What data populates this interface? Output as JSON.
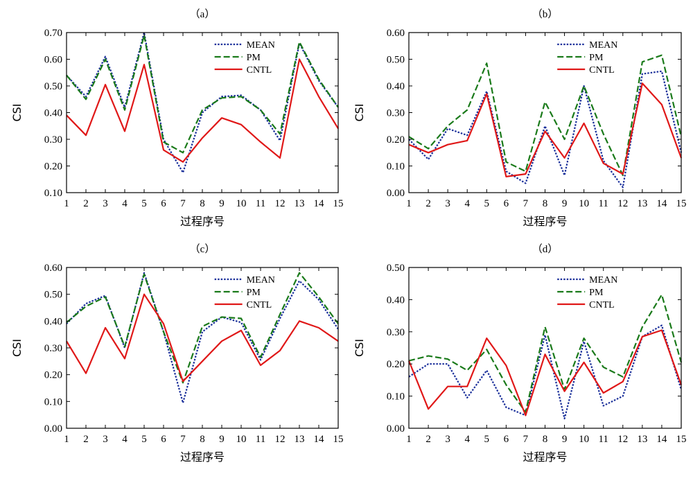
{
  "styles": {
    "MEAN": {
      "color": "#1a2f9a",
      "dash": "2.5,2",
      "width": 2.2
    },
    "PM": {
      "color": "#1a7a1a",
      "dash": "9,4",
      "width": 2.2
    },
    "CNTL": {
      "color": "#e01818",
      "dash": "",
      "width": 2.2
    }
  },
  "chart_data": [
    {
      "type": "line",
      "title": "（a）",
      "xlabel": "过程序号",
      "ylabel": "CSI",
      "x": [
        1,
        2,
        3,
        4,
        5,
        6,
        7,
        8,
        9,
        10,
        11,
        12,
        13,
        14,
        15
      ],
      "ylim": [
        0.1,
        0.7
      ],
      "yticks": [
        0.1,
        0.2,
        0.3,
        0.4,
        0.5,
        0.6,
        0.7
      ],
      "legend": "top-right",
      "grid": false,
      "series": [
        {
          "name": "MEAN",
          "values": [
            0.54,
            0.46,
            0.61,
            0.42,
            0.7,
            0.3,
            0.175,
            0.4,
            0.46,
            0.465,
            0.41,
            0.295,
            0.66,
            0.52,
            0.42
          ]
        },
        {
          "name": "PM",
          "values": [
            0.54,
            0.45,
            0.6,
            0.41,
            0.69,
            0.29,
            0.25,
            0.41,
            0.455,
            0.46,
            0.41,
            0.32,
            0.665,
            0.525,
            0.42
          ]
        },
        {
          "name": "CNTL",
          "values": [
            0.39,
            0.315,
            0.505,
            0.33,
            0.58,
            0.26,
            0.215,
            0.305,
            0.38,
            0.355,
            0.29,
            0.23,
            0.6,
            0.46,
            0.34
          ]
        }
      ]
    },
    {
      "type": "line",
      "title": "（b）",
      "xlabel": "过程序号",
      "ylabel": "CSI",
      "x": [
        1,
        2,
        3,
        4,
        5,
        6,
        7,
        8,
        9,
        10,
        11,
        12,
        13,
        14,
        15
      ],
      "ylim": [
        0.0,
        0.6
      ],
      "yticks": [
        0.0,
        0.1,
        0.2,
        0.3,
        0.4,
        0.5,
        0.6
      ],
      "legend": "top-right",
      "grid": false,
      "series": [
        {
          "name": "MEAN",
          "values": [
            0.2,
            0.125,
            0.24,
            0.215,
            0.38,
            0.08,
            0.035,
            0.25,
            0.065,
            0.4,
            0.12,
            0.02,
            0.445,
            0.455,
            0.15
          ]
        },
        {
          "name": "PM",
          "values": [
            0.21,
            0.165,
            0.25,
            0.31,
            0.485,
            0.115,
            0.08,
            0.34,
            0.2,
            0.4,
            0.22,
            0.065,
            0.49,
            0.515,
            0.21
          ]
        },
        {
          "name": "CNTL",
          "values": [
            0.18,
            0.15,
            0.18,
            0.195,
            0.37,
            0.06,
            0.07,
            0.23,
            0.13,
            0.26,
            0.11,
            0.07,
            0.41,
            0.33,
            0.13
          ]
        }
      ]
    },
    {
      "type": "line",
      "title": "（c）",
      "xlabel": "过程序号",
      "ylabel": "CSI",
      "x": [
        1,
        2,
        3,
        4,
        5,
        6,
        7,
        8,
        9,
        10,
        11,
        12,
        13,
        14,
        15
      ],
      "ylim": [
        0.0,
        0.6
      ],
      "yticks": [
        0.0,
        0.1,
        0.2,
        0.3,
        0.4,
        0.5,
        0.6
      ],
      "legend": "top-right",
      "grid": false,
      "series": [
        {
          "name": "MEAN",
          "values": [
            0.39,
            0.465,
            0.495,
            0.3,
            0.58,
            0.36,
            0.095,
            0.36,
            0.415,
            0.395,
            0.255,
            0.41,
            0.55,
            0.48,
            0.37
          ]
        },
        {
          "name": "PM",
          "values": [
            0.395,
            0.455,
            0.49,
            0.305,
            0.575,
            0.36,
            0.17,
            0.38,
            0.415,
            0.41,
            0.265,
            0.425,
            0.58,
            0.49,
            0.39
          ]
        },
        {
          "name": "CNTL",
          "values": [
            0.325,
            0.205,
            0.375,
            0.26,
            0.5,
            0.39,
            0.175,
            0.25,
            0.325,
            0.365,
            0.235,
            0.29,
            0.4,
            0.375,
            0.325
          ]
        }
      ]
    },
    {
      "type": "line",
      "title": "（d）",
      "xlabel": "过程序号",
      "ylabel": "CSI",
      "x": [
        1,
        2,
        3,
        4,
        5,
        6,
        7,
        8,
        9,
        10,
        11,
        12,
        13,
        14,
        15
      ],
      "ylim": [
        0.0,
        0.5
      ],
      "yticks": [
        0.0,
        0.1,
        0.2,
        0.3,
        0.4,
        0.5
      ],
      "legend": "top-right",
      "grid": false,
      "series": [
        {
          "name": "MEAN",
          "values": [
            0.16,
            0.2,
            0.2,
            0.095,
            0.18,
            0.065,
            0.04,
            0.29,
            0.03,
            0.27,
            0.07,
            0.1,
            0.285,
            0.32,
            0.12
          ]
        },
        {
          "name": "PM",
          "values": [
            0.21,
            0.225,
            0.215,
            0.18,
            0.245,
            0.135,
            0.05,
            0.315,
            0.12,
            0.28,
            0.19,
            0.16,
            0.315,
            0.415,
            0.205
          ]
        },
        {
          "name": "CNTL",
          "values": [
            0.21,
            0.06,
            0.13,
            0.13,
            0.28,
            0.195,
            0.04,
            0.23,
            0.115,
            0.205,
            0.11,
            0.145,
            0.285,
            0.305,
            0.135
          ]
        }
      ]
    }
  ]
}
